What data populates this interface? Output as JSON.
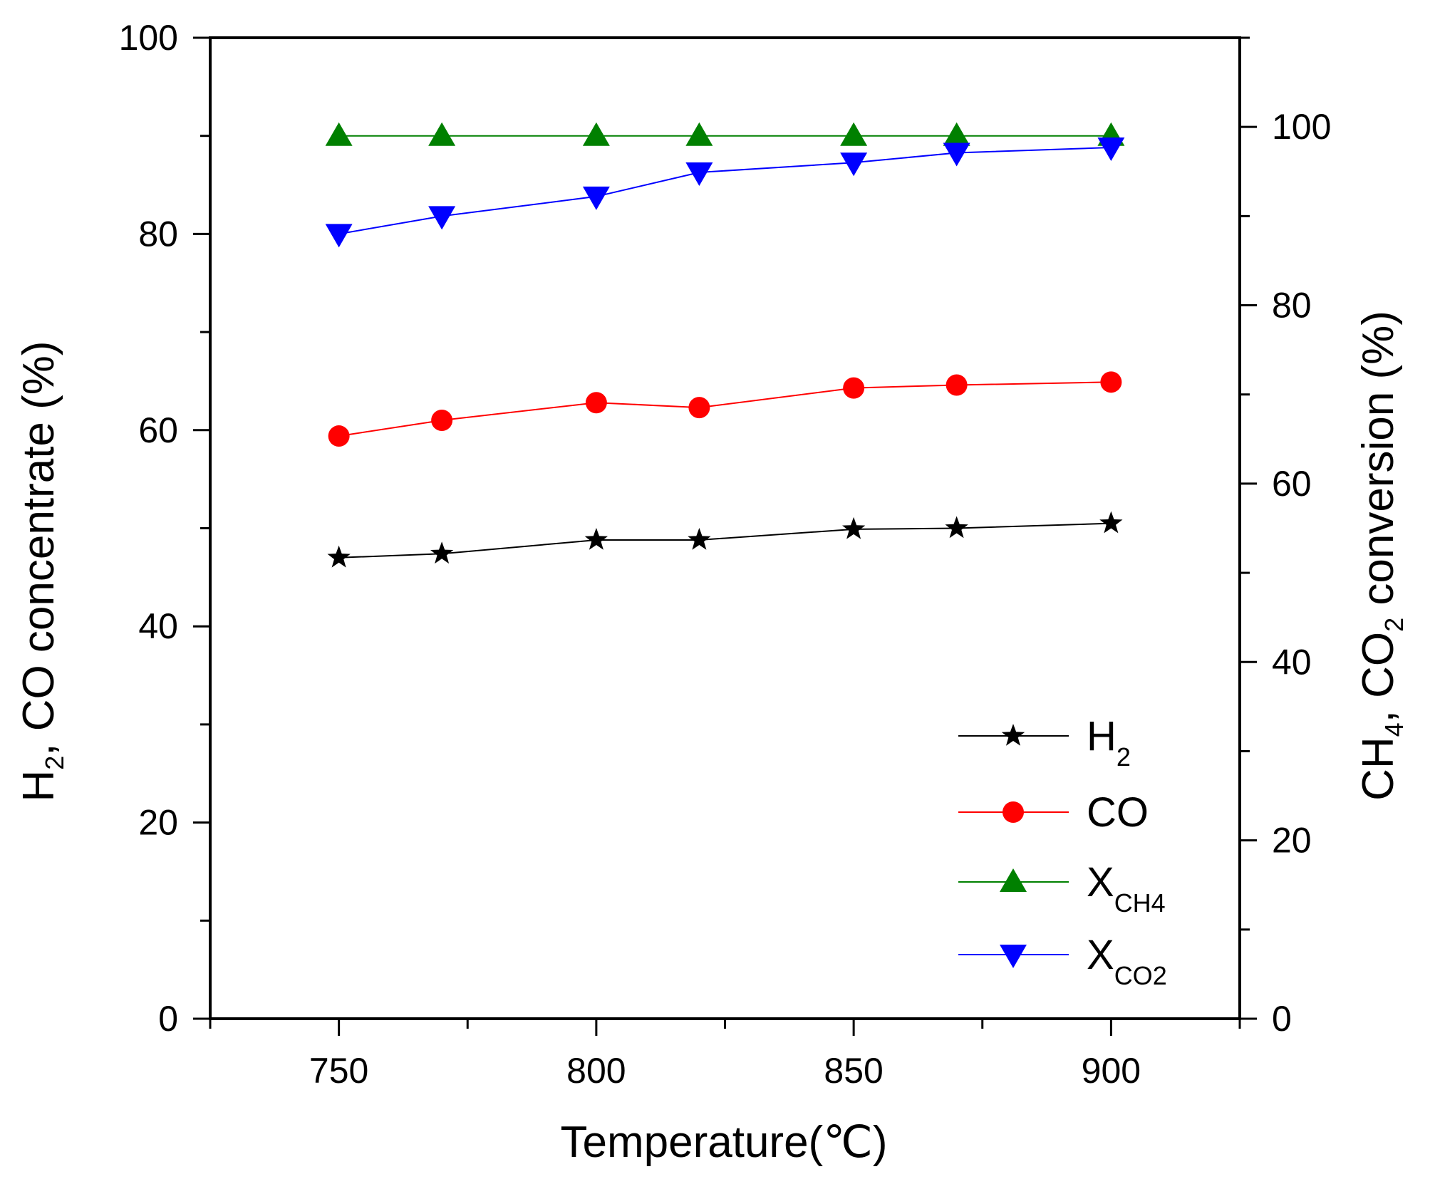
{
  "chart_data": {
    "type": "line",
    "title": "",
    "x": [
      750,
      770,
      800,
      820,
      850,
      870,
      900
    ],
    "xlabel": "Temperature(℃)",
    "xlim": [
      725,
      925
    ],
    "xticks": [
      750,
      800,
      850,
      900
    ],
    "ylabel": {
      "base": "H",
      "sub": "2",
      "rest": ", CO concentrate (%)"
    },
    "ylim": [
      0,
      100
    ],
    "yticks": [
      0,
      20,
      40,
      60,
      80,
      100
    ],
    "y2label": {
      "base1": "CH",
      "sub1": "4",
      "mid": ", CO",
      "sub2": "2",
      "rest": " conversion (%)"
    },
    "y2lim": [
      0,
      110
    ],
    "y2ticks": [
      0,
      20,
      40,
      60,
      80,
      100
    ],
    "grid": false,
    "legend_position": "bottom-right",
    "series": [
      {
        "name": "H2",
        "label_base": "H",
        "label_sub": "2",
        "axis": "left",
        "color": "#000000",
        "marker": "star",
        "values": [
          47.0,
          47.4,
          48.8,
          48.8,
          49.9,
          50.0,
          50.5
        ]
      },
      {
        "name": "CO",
        "label_base": "CO",
        "label_sub": "",
        "axis": "left",
        "color": "#ff0000",
        "marker": "circle",
        "values": [
          59.4,
          61.0,
          62.8,
          62.3,
          64.3,
          64.6,
          64.9
        ]
      },
      {
        "name": "XCH4",
        "label_base": "X",
        "label_sub": "CH4",
        "axis": "right",
        "color": "#008000",
        "marker": "triangle-up",
        "values": [
          99.0,
          99.0,
          99.0,
          99.0,
          99.0,
          99.0,
          99.0
        ]
      },
      {
        "name": "XCO2",
        "label_base": "X",
        "label_sub": "CO2",
        "axis": "right",
        "color": "#0000ff",
        "marker": "triangle-down",
        "values": [
          88.0,
          90.0,
          92.2,
          94.9,
          96.0,
          97.1,
          97.7
        ]
      }
    ]
  }
}
